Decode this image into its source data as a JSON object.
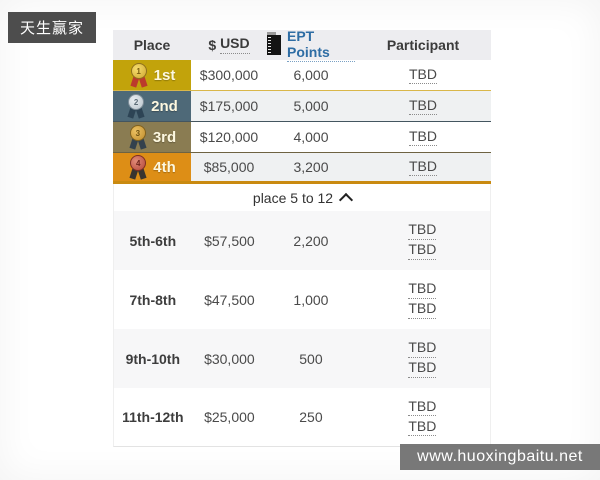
{
  "badge": {
    "label": "天生赢家"
  },
  "watermark": {
    "text": "www.huoxingbaitu.net"
  },
  "colors": {
    "first_place_bg": "#c2a30b",
    "second_place_bg": "#4e6978",
    "third_place_bg": "#8a7c52",
    "fourth_place_bg": "#dd8e16",
    "first_border": "#d9b74a",
    "second_border": "#44555f",
    "third_border": "#6e6342",
    "fourth_border": "#c98a10",
    "row_alt_bg": "#eff1f2",
    "row_white_bg": "#ffffff",
    "bottom_alt_bg": "#f7f7f8",
    "header_bg": "#ededf0",
    "ept_link": "#2e6da4"
  },
  "table": {
    "headers": {
      "place": "Place",
      "usd_prefix": "$",
      "usd": "USD",
      "points": "EPT Points",
      "participant": "Participant"
    },
    "top_rows": [
      {
        "place": "1st",
        "usd": "$300,000",
        "points": "6,000",
        "participants": [
          "TBD"
        ],
        "medal": "gold",
        "medal_number": "1",
        "bg": "#ffffff",
        "place_bg": "#c2a30b",
        "border": "#d9b74a"
      },
      {
        "place": "2nd",
        "usd": "$175,000",
        "points": "5,000",
        "participants": [
          "TBD"
        ],
        "medal": "silver",
        "medal_number": "2",
        "bg": "#eff1f2",
        "place_bg": "#4e6978",
        "border": "#44555f"
      },
      {
        "place": "3rd",
        "usd": "$120,000",
        "points": "4,000",
        "participants": [
          "TBD"
        ],
        "medal": "bronze",
        "medal_number": "3",
        "bg": "#ffffff",
        "place_bg": "#8a7c52",
        "border": "#6e6342"
      },
      {
        "place": "4th",
        "usd": "$85,000",
        "points": "3,200",
        "participants": [
          "TBD"
        ],
        "medal": "red",
        "medal_number": "4",
        "bg": "#eff1f2",
        "place_bg": "#dd8e16",
        "border": "#c98a10"
      }
    ],
    "collapse": {
      "label": "place 5 to 12",
      "icon": "chevron-up"
    },
    "bottom_rows": [
      {
        "place": "5th-6th",
        "usd": "$57,500",
        "points": "2,200",
        "participants": [
          "TBD",
          "TBD"
        ],
        "bg": "#f7f7f8"
      },
      {
        "place": "7th-8th",
        "usd": "$47,500",
        "points": "1,000",
        "participants": [
          "TBD",
          "TBD"
        ],
        "bg": "#ffffff"
      },
      {
        "place": "9th-10th",
        "usd": "$30,000",
        "points": "500",
        "participants": [
          "TBD",
          "TBD"
        ],
        "bg": "#f7f7f8"
      },
      {
        "place": "11th-12th",
        "usd": "$25,000",
        "points": "250",
        "participants": [
          "TBD",
          "TBD"
        ],
        "bg": "#ffffff"
      }
    ]
  }
}
